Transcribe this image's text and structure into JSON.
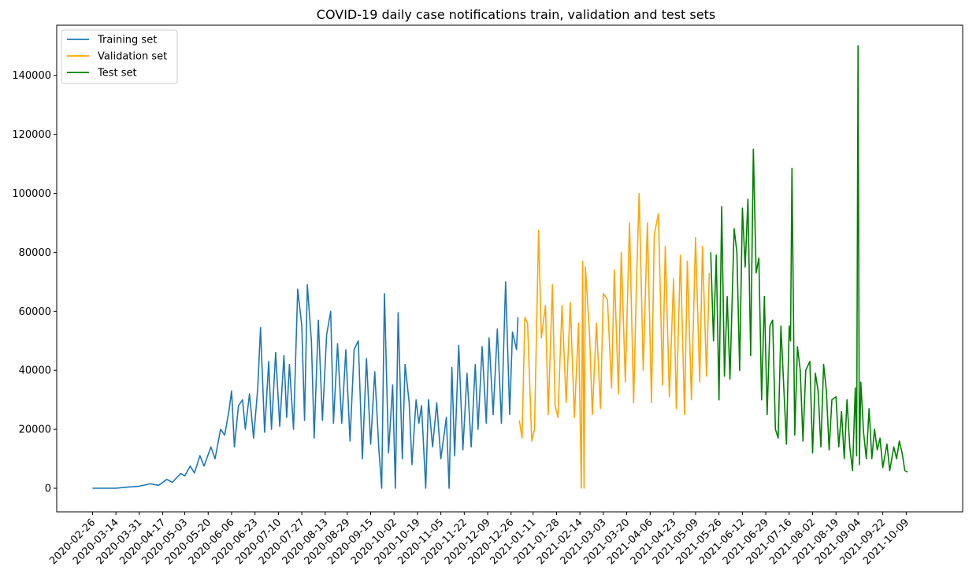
{
  "chart_data": {
    "type": "line",
    "title": "COVID-19 daily case notifications train, validation and test sets",
    "xlabel": "",
    "ylabel": "",
    "ylim": [
      -8000,
      157000
    ],
    "yticks": [
      0,
      20000,
      40000,
      60000,
      80000,
      100000,
      120000,
      140000
    ],
    "xlim": [
      "2020-01-31",
      "2021-11-19"
    ],
    "xticks": [
      "2020-02-26",
      "2020-03-14",
      "2020-03-31",
      "2020-04-17",
      "2020-05-03",
      "2020-05-20",
      "2020-06-06",
      "2020-06-23",
      "2020-07-10",
      "2020-07-27",
      "2020-08-13",
      "2020-08-29",
      "2020-09-15",
      "2020-10-02",
      "2020-10-19",
      "2020-11-05",
      "2020-11-22",
      "2020-12-09",
      "2020-12-26",
      "2021-01-11",
      "2021-01-28",
      "2021-02-14",
      "2021-03-03",
      "2021-03-20",
      "2021-04-06",
      "2021-04-23",
      "2021-05-09",
      "2021-05-26",
      "2021-06-12",
      "2021-06-29",
      "2021-07-16",
      "2021-08-02",
      "2021-08-19",
      "2021-09-04",
      "2021-09-22",
      "2021-10-09"
    ],
    "grid": false,
    "legend": "top-left",
    "series": [
      {
        "name": "Training set",
        "color": "#1f77b4",
        "points": [
          [
            "2020-02-26",
            0
          ],
          [
            "2020-03-14",
            0
          ],
          [
            "2020-03-20",
            300
          ],
          [
            "2020-03-31",
            700
          ],
          [
            "2020-04-08",
            1500
          ],
          [
            "2020-04-14",
            1000
          ],
          [
            "2020-04-20",
            3000
          ],
          [
            "2020-04-24",
            2000
          ],
          [
            "2020-04-30",
            5000
          ],
          [
            "2020-05-03",
            4200
          ],
          [
            "2020-05-07",
            7500
          ],
          [
            "2020-05-10",
            5200
          ],
          [
            "2020-05-14",
            11000
          ],
          [
            "2020-05-17",
            7500
          ],
          [
            "2020-05-22",
            14000
          ],
          [
            "2020-05-25",
            10000
          ],
          [
            "2020-05-29",
            20000
          ],
          [
            "2020-06-01",
            18000
          ],
          [
            "2020-06-04",
            26000
          ],
          [
            "2020-06-06",
            33000
          ],
          [
            "2020-06-08",
            14000
          ],
          [
            "2020-06-11",
            28000
          ],
          [
            "2020-06-14",
            30000
          ],
          [
            "2020-06-16",
            20000
          ],
          [
            "2020-06-19",
            32000
          ],
          [
            "2020-06-22",
            17000
          ],
          [
            "2020-06-25",
            34000
          ],
          [
            "2020-06-27",
            54500
          ],
          [
            "2020-06-30",
            19000
          ],
          [
            "2020-07-03",
            43000
          ],
          [
            "2020-07-05",
            20000
          ],
          [
            "2020-07-08",
            46000
          ],
          [
            "2020-07-11",
            21000
          ],
          [
            "2020-07-14",
            45000
          ],
          [
            "2020-07-16",
            24000
          ],
          [
            "2020-07-18",
            42000
          ],
          [
            "2020-07-21",
            20000
          ],
          [
            "2020-07-24",
            67500
          ],
          [
            "2020-07-27",
            55000
          ],
          [
            "2020-07-29",
            23000
          ],
          [
            "2020-07-31",
            69000
          ],
          [
            "2020-08-03",
            50000
          ],
          [
            "2020-08-05",
            17000
          ],
          [
            "2020-08-08",
            57000
          ],
          [
            "2020-08-11",
            23000
          ],
          [
            "2020-08-14",
            52000
          ],
          [
            "2020-08-17",
            60000
          ],
          [
            "2020-08-19",
            22000
          ],
          [
            "2020-08-22",
            49000
          ],
          [
            "2020-08-25",
            22000
          ],
          [
            "2020-08-28",
            47000
          ],
          [
            "2020-08-31",
            16000
          ],
          [
            "2020-09-03",
            47000
          ],
          [
            "2020-09-06",
            50000
          ],
          [
            "2020-09-09",
            10000
          ],
          [
            "2020-09-12",
            44000
          ],
          [
            "2020-09-15",
            15000
          ],
          [
            "2020-09-18",
            39500
          ],
          [
            "2020-09-21",
            13000
          ],
          [
            "2020-09-23",
            0
          ],
          [
            "2020-09-25",
            66000
          ],
          [
            "2020-09-28",
            12000
          ],
          [
            "2020-10-01",
            35000
          ],
          [
            "2020-10-03",
            0
          ],
          [
            "2020-10-05",
            59500
          ],
          [
            "2020-10-08",
            10000
          ],
          [
            "2020-10-10",
            42000
          ],
          [
            "2020-10-13",
            29000
          ],
          [
            "2020-10-15",
            8000
          ],
          [
            "2020-10-18",
            30000
          ],
          [
            "2020-10-20",
            22000
          ],
          [
            "2020-10-22",
            28000
          ],
          [
            "2020-10-25",
            0
          ],
          [
            "2020-10-27",
            30000
          ],
          [
            "2020-10-30",
            14000
          ],
          [
            "2020-11-02",
            29000
          ],
          [
            "2020-11-05",
            10000
          ],
          [
            "2020-11-09",
            24000
          ],
          [
            "2020-11-11",
            0
          ],
          [
            "2020-11-13",
            41000
          ],
          [
            "2020-11-15",
            11000
          ],
          [
            "2020-11-18",
            48500
          ],
          [
            "2020-11-21",
            13000
          ],
          [
            "2020-11-24",
            39000
          ],
          [
            "2020-11-27",
            14000
          ],
          [
            "2020-11-30",
            42000
          ],
          [
            "2020-12-02",
            20000
          ],
          [
            "2020-12-05",
            48000
          ],
          [
            "2020-12-08",
            22000
          ],
          [
            "2020-12-10",
            51000
          ],
          [
            "2020-12-13",
            25000
          ],
          [
            "2020-12-16",
            54000
          ],
          [
            "2020-12-19",
            22000
          ],
          [
            "2020-12-22",
            70000
          ],
          [
            "2020-12-25",
            25000
          ],
          [
            "2020-12-27",
            53000
          ],
          [
            "2020-12-30",
            47000
          ],
          [
            "2020-12-31",
            58000
          ]
        ]
      },
      {
        "name": "Validation set",
        "color": "#ffa500",
        "points": [
          [
            "2021-01-01",
            23000
          ],
          [
            "2021-01-03",
            17000
          ],
          [
            "2021-01-05",
            58000
          ],
          [
            "2021-01-07",
            56000
          ],
          [
            "2021-01-10",
            16000
          ],
          [
            "2021-01-12",
            20000
          ],
          [
            "2021-01-15",
            87500
          ],
          [
            "2021-01-17",
            51000
          ],
          [
            "2021-01-20",
            62000
          ],
          [
            "2021-01-22",
            25000
          ],
          [
            "2021-01-25",
            69000
          ],
          [
            "2021-01-27",
            28000
          ],
          [
            "2021-01-29",
            24000
          ],
          [
            "2021-02-01",
            62000
          ],
          [
            "2021-02-04",
            29000
          ],
          [
            "2021-02-07",
            63000
          ],
          [
            "2021-02-10",
            24000
          ],
          [
            "2021-02-13",
            56000
          ],
          [
            "2021-02-15",
            0
          ],
          [
            "2021-02-16",
            77000
          ],
          [
            "2021-02-17",
            0
          ],
          [
            "2021-02-18",
            75000
          ],
          [
            "2021-02-21",
            52000
          ],
          [
            "2021-02-23",
            25000
          ],
          [
            "2021-02-26",
            56000
          ],
          [
            "2021-03-01",
            27000
          ],
          [
            "2021-03-03",
            66000
          ],
          [
            "2021-03-06",
            64000
          ],
          [
            "2021-03-09",
            34000
          ],
          [
            "2021-03-11",
            74000
          ],
          [
            "2021-03-14",
            32000
          ],
          [
            "2021-03-16",
            80000
          ],
          [
            "2021-03-19",
            36000
          ],
          [
            "2021-03-22",
            90000
          ],
          [
            "2021-03-25",
            29000
          ],
          [
            "2021-03-27",
            68000
          ],
          [
            "2021-03-29",
            100000
          ],
          [
            "2021-04-01",
            40000
          ],
          [
            "2021-04-04",
            90000
          ],
          [
            "2021-04-07",
            29000
          ],
          [
            "2021-04-09",
            86000
          ],
          [
            "2021-04-12",
            93000
          ],
          [
            "2021-04-15",
            35000
          ],
          [
            "2021-04-17",
            82000
          ],
          [
            "2021-04-20",
            31000
          ],
          [
            "2021-04-23",
            71000
          ],
          [
            "2021-04-25",
            27000
          ],
          [
            "2021-04-28",
            79000
          ],
          [
            "2021-05-01",
            25000
          ],
          [
            "2021-05-03",
            77000
          ],
          [
            "2021-05-06",
            30000
          ],
          [
            "2021-05-09",
            85000
          ],
          [
            "2021-05-12",
            36000
          ],
          [
            "2021-05-14",
            82000
          ],
          [
            "2021-05-17",
            38000
          ],
          [
            "2021-05-19",
            73000
          ]
        ]
      },
      {
        "name": "Test set",
        "color": "#008000",
        "points": [
          [
            "2021-05-20",
            80000
          ],
          [
            "2021-05-22",
            50000
          ],
          [
            "2021-05-24",
            79000
          ],
          [
            "2021-05-26",
            30000
          ],
          [
            "2021-05-28",
            95500
          ],
          [
            "2021-05-30",
            38000
          ],
          [
            "2021-06-01",
            65000
          ],
          [
            "2021-06-03",
            37000
          ],
          [
            "2021-06-06",
            88000
          ],
          [
            "2021-06-08",
            80000
          ],
          [
            "2021-06-10",
            40000
          ],
          [
            "2021-06-12",
            95000
          ],
          [
            "2021-06-14",
            75000
          ],
          [
            "2021-06-16",
            98000
          ],
          [
            "2021-06-18",
            45000
          ],
          [
            "2021-06-20",
            115000
          ],
          [
            "2021-06-22",
            73000
          ],
          [
            "2021-06-24",
            78000
          ],
          [
            "2021-06-26",
            30000
          ],
          [
            "2021-06-28",
            65000
          ],
          [
            "2021-06-30",
            25000
          ],
          [
            "2021-07-02",
            55000
          ],
          [
            "2021-07-04",
            57000
          ],
          [
            "2021-07-06",
            20000
          ],
          [
            "2021-07-08",
            17000
          ],
          [
            "2021-07-10",
            55000
          ],
          [
            "2021-07-12",
            35000
          ],
          [
            "2021-07-14",
            15000
          ],
          [
            "2021-07-16",
            55000
          ],
          [
            "2021-07-17",
            50000
          ],
          [
            "2021-07-18",
            108500
          ],
          [
            "2021-07-20",
            18000
          ],
          [
            "2021-07-22",
            48000
          ],
          [
            "2021-07-24",
            40000
          ],
          [
            "2021-07-26",
            16000
          ],
          [
            "2021-07-28",
            40000
          ],
          [
            "2021-07-31",
            43000
          ],
          [
            "2021-08-02",
            12000
          ],
          [
            "2021-08-04",
            39000
          ],
          [
            "2021-08-06",
            33000
          ],
          [
            "2021-08-08",
            14000
          ],
          [
            "2021-08-10",
            42000
          ],
          [
            "2021-08-12",
            33000
          ],
          [
            "2021-08-14",
            13000
          ],
          [
            "2021-08-16",
            30000
          ],
          [
            "2021-08-19",
            31000
          ],
          [
            "2021-08-21",
            14000
          ],
          [
            "2021-08-23",
            26000
          ],
          [
            "2021-08-25",
            10000
          ],
          [
            "2021-08-27",
            30000
          ],
          [
            "2021-08-29",
            14000
          ],
          [
            "2021-08-31",
            6000
          ],
          [
            "2021-09-02",
            34000
          ],
          [
            "2021-09-03",
            11000
          ],
          [
            "2021-09-04",
            150000
          ],
          [
            "2021-09-05",
            8000
          ],
          [
            "2021-09-06",
            36000
          ],
          [
            "2021-09-08",
            19000
          ],
          [
            "2021-09-10",
            10000
          ],
          [
            "2021-09-12",
            27000
          ],
          [
            "2021-09-14",
            10000
          ],
          [
            "2021-09-16",
            20000
          ],
          [
            "2021-09-18",
            13000
          ],
          [
            "2021-09-20",
            17000
          ],
          [
            "2021-09-22",
            7000
          ],
          [
            "2021-09-25",
            15000
          ],
          [
            "2021-09-27",
            6000
          ],
          [
            "2021-09-30",
            14000
          ],
          [
            "2021-10-02",
            10000
          ],
          [
            "2021-10-04",
            16000
          ],
          [
            "2021-10-06",
            12000
          ],
          [
            "2021-10-08",
            6000
          ],
          [
            "2021-10-10",
            5500
          ]
        ]
      }
    ]
  }
}
